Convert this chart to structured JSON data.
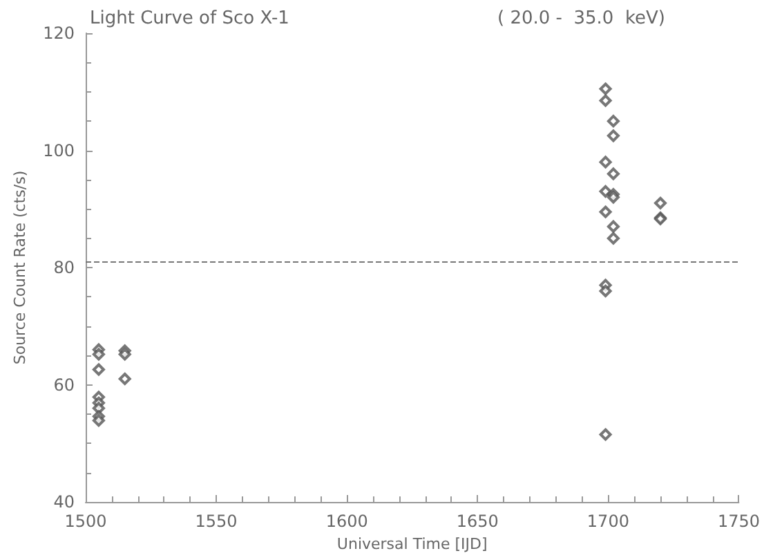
{
  "chart_data": {
    "type": "scatter",
    "title": "Light Curve of Sco X-1",
    "subtitle": "( 20.0 -  35.0  keV)",
    "xlabel": "Universal Time [IJD]",
    "ylabel": "Source Count Rate (cts/s)",
    "x": [
      1505,
      1505,
      1505,
      1505,
      1505,
      1505,
      1505,
      1505,
      1515,
      1515,
      1515,
      1699,
      1699,
      1699,
      1699,
      1699,
      1699,
      1699,
      1699,
      1702,
      1702,
      1702,
      1702,
      1702,
      1702,
      1702,
      1720,
      1720,
      1720
    ],
    "values": [
      66,
      65.2,
      62.6,
      57.9,
      56.9,
      56,
      54.6,
      53.9,
      65.8,
      65.2,
      61,
      110.5,
      108.5,
      98,
      93,
      89.5,
      77,
      76,
      51.5,
      105,
      102.5,
      96,
      92.5,
      92,
      87,
      85,
      91,
      88.5,
      88.3
    ],
    "color": "#555555",
    "marker": "diamond",
    "xlim": [
      1500,
      1750
    ],
    "xticks": [
      1500,
      1550,
      1600,
      1650,
      1700,
      1750
    ],
    "ylim": [
      40,
      120
    ],
    "yticks": [
      40,
      60,
      80,
      100,
      120
    ],
    "grid": false,
    "ref_lines": [
      {
        "axis": "y",
        "value": 81,
        "color": "#777777",
        "line_style": "dashed"
      }
    ]
  }
}
